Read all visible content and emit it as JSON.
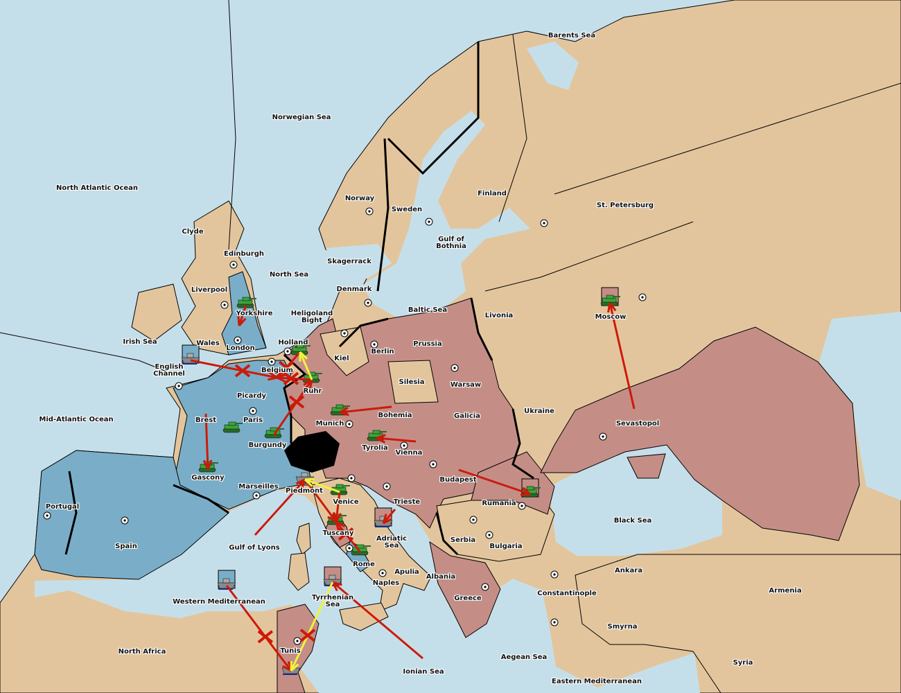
{
  "colors": {
    "sea": "#c5dfea",
    "neutral_land": "#e3c59d",
    "power_blue": "#7aaec8",
    "power_red": "#c48e87",
    "impassable": "#000000",
    "order_move": "#cc1a0a",
    "order_support": "#f2f23a",
    "army": "#3aa63a",
    "fleet": "#8a8a8a"
  },
  "territories": [
    "Barents Sea",
    "Norwegian Sea",
    "North Atlantic Ocean",
    "Clyde",
    "Edinburgh",
    "Liverpool",
    "Yorkshire",
    "North Sea",
    "Norway",
    "Sweden",
    "Finland",
    "St. Petersburg",
    "Gulf of\nBothnia",
    "Skagerrack",
    "Denmark",
    "Heligoland\nBight",
    "Baltic Sea",
    "Livonia",
    "Moscow",
    "Irish Sea",
    "Wales",
    "London",
    "Holland",
    "Kiel",
    "Berlin",
    "Prussia",
    "English\nChannel",
    "Belgium",
    "Ruhr",
    "Silesia",
    "Warsaw",
    "Picardy",
    "Ukraine",
    "Mid-Atlantic Ocean",
    "Brest",
    "Paris",
    "Munich",
    "Bohemia",
    "Galicia",
    "Sevastopol",
    "Tyrolia",
    "Vienna",
    "Burgundy",
    "Gascony",
    "Budapest",
    "Marseilles",
    "Piedmont",
    "Venice",
    "Trieste",
    "Rumania",
    "Portugal",
    "Black Sea",
    "Tuscany",
    "Adriatic\nSea",
    "Serbia",
    "Bulgaria",
    "Spain",
    "Gulf of Lyons",
    "Rome",
    "Apulia",
    "Albania",
    "Ankara",
    "Naples",
    "Armenia",
    "Constantinople",
    "Greece",
    "Western Mediterranean",
    "Tyrrhenian\nSea",
    "Smyrna",
    "North Africa",
    "Tunis",
    "Aegean Sea",
    "Syria",
    "Ionian Sea",
    "Eastern Mediterranean"
  ],
  "units": [
    {
      "type": "army",
      "location": "Yorkshire",
      "owner": "blue"
    },
    {
      "type": "army",
      "location": "Holland",
      "owner": "red"
    },
    {
      "type": "army",
      "location": "Ruhr",
      "owner": "red"
    },
    {
      "type": "army",
      "location": "Munich",
      "owner": "red"
    },
    {
      "type": "army",
      "location": "Paris",
      "owner": "blue"
    },
    {
      "type": "army",
      "location": "Burgundy",
      "owner": "blue"
    },
    {
      "type": "army",
      "location": "Gascony",
      "owner": "blue"
    },
    {
      "type": "army",
      "location": "Tyrolia",
      "owner": "red"
    },
    {
      "type": "army",
      "location": "Venice",
      "owner": "red"
    },
    {
      "type": "army",
      "location": "Tuscany",
      "owner": "red"
    },
    {
      "type": "army",
      "location": "Rome",
      "owner": "blue"
    },
    {
      "type": "army",
      "location": "Rumania",
      "owner": "red"
    },
    {
      "type": "army",
      "location": "Moscow",
      "owner": "red"
    },
    {
      "type": "fleet",
      "location": "English Channel",
      "owner": "blue"
    },
    {
      "type": "fleet",
      "location": "Piedmont",
      "owner": "blue"
    },
    {
      "type": "fleet",
      "location": "Adriatic Sea",
      "owner": "red"
    },
    {
      "type": "fleet",
      "location": "Western Mediterranean",
      "owner": "blue"
    },
    {
      "type": "fleet",
      "location": "Tyrrhenian Sea",
      "owner": "red"
    },
    {
      "type": "fleet",
      "location": "Tunis",
      "owner": "blue"
    }
  ],
  "orders": [
    {
      "from": "English Channel",
      "to": "Belgium",
      "kind": "move",
      "failed": true
    },
    {
      "from": "Holland",
      "to": "Belgium",
      "kind": "move",
      "failed": true
    },
    {
      "from": "Ruhr",
      "to": "Belgium",
      "kind": "move",
      "failed": true
    },
    {
      "from": "Burgundy",
      "to": "Ruhr",
      "kind": "move",
      "failed": true
    },
    {
      "from": "Brest",
      "to": "Gascony",
      "kind": "move",
      "failed": false
    },
    {
      "from": "Yorkshire",
      "to": "London",
      "kind": "move",
      "failed": false
    },
    {
      "from": "Bohemia",
      "to": "Munich",
      "kind": "move",
      "failed": false
    },
    {
      "from": "Vienna",
      "to": "Tyrolia",
      "kind": "move",
      "failed": false
    },
    {
      "from": "Budapest",
      "to": "Rumania",
      "kind": "move",
      "failed": false
    },
    {
      "from": "Sevastopol",
      "to": "Moscow",
      "kind": "move",
      "failed": false
    },
    {
      "from": "Gulf of Lyons",
      "to": "Piedmont",
      "kind": "move",
      "failed": false
    },
    {
      "from": "Piedmont",
      "to": "Tuscany",
      "kind": "move",
      "failed": false
    },
    {
      "from": "Venice",
      "to": "Tuscany",
      "kind": "move",
      "failed": false
    },
    {
      "from": "Rome",
      "to": "Tuscany",
      "kind": "move",
      "failed": true
    },
    {
      "from": "Trieste",
      "to": "Adriatic Sea",
      "kind": "move",
      "failed": false
    },
    {
      "from": "Western Mediterranean",
      "to": "Tunis",
      "kind": "move",
      "failed": true
    },
    {
      "from": "Ionian Sea",
      "to": "Tyrrhenian Sea",
      "kind": "move",
      "failed": false
    },
    {
      "from": "Tyrrhenian Sea",
      "to": "Tunis",
      "kind": "support",
      "failed": true
    },
    {
      "from": "Ruhr",
      "to": "Holland",
      "kind": "support",
      "failed": false
    },
    {
      "from": "Venice",
      "to": "Piedmont",
      "kind": "support",
      "failed": false
    }
  ]
}
